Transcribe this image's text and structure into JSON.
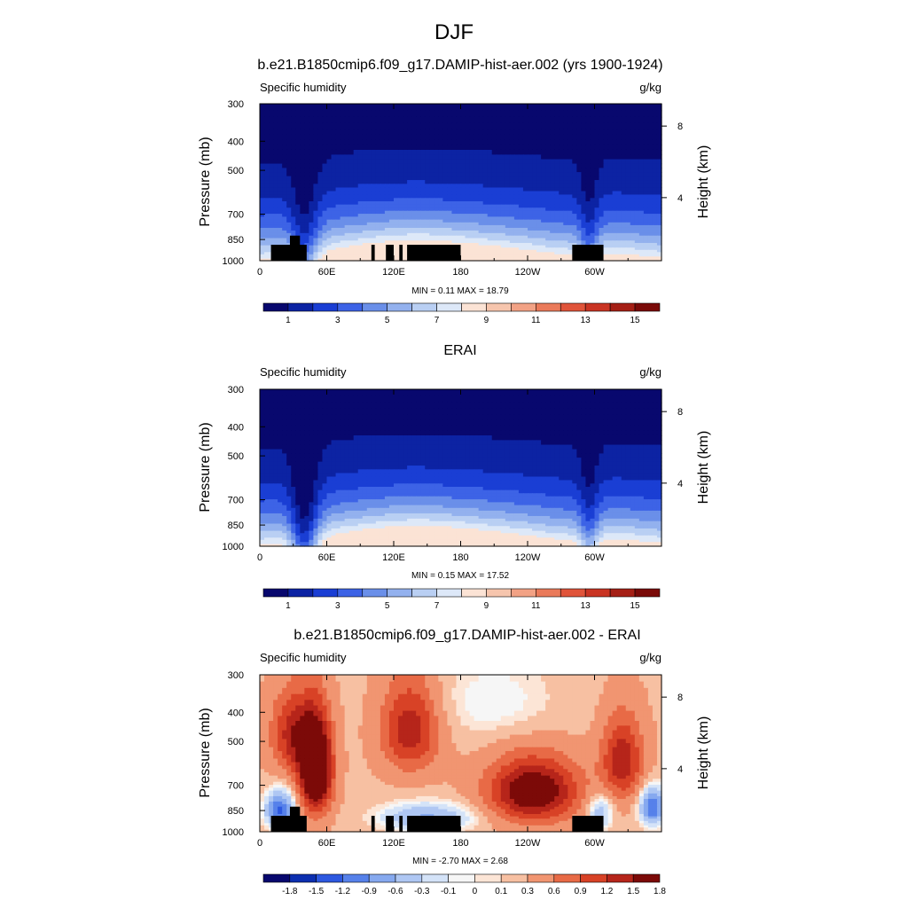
{
  "figure": {
    "title": "DJF"
  },
  "colors": {
    "model_scale": [
      "#08086e",
      "#0c23a3",
      "#1a3ed4",
      "#3d63e6",
      "#6a8fe9",
      "#93b1ee",
      "#b9cff3",
      "#dde8f8",
      "#fbe3d5",
      "#f6c5ad",
      "#f2a285",
      "#ea7a5a",
      "#e0543a",
      "#c93423",
      "#a51f15",
      "#7a0a08"
    ],
    "diff_scale": [
      "#08086e",
      "#0c2fb0",
      "#2d58e0",
      "#5681ea",
      "#86a9ef",
      "#afc7f3",
      "#d4e3f8",
      "#f6f6f6",
      "#fce5d6",
      "#f7c0a2",
      "#f19571",
      "#e86a46",
      "#d84226",
      "#b6251a",
      "#7c0a08"
    ]
  },
  "chart_data": [
    {
      "type": "heatmap",
      "title": "b.e21.B1850cmip6.f09_g17.DAMIP-hist-aer.002 (yrs 1900-1924)",
      "left_label": "Specific humidity",
      "right_label": "g/kg",
      "ylabel": "Pressure (mb)",
      "ylabel_right": "Height (km)",
      "xticks": [
        "0",
        "60E",
        "120E",
        "180",
        "120W",
        "60W"
      ],
      "xtick_lons": [
        0,
        60,
        120,
        180,
        240,
        300
      ],
      "xlim": [
        0,
        360
      ],
      "yticks": [
        "300",
        "400",
        "500",
        "700",
        "850",
        "1000"
      ],
      "ytick_values": [
        300,
        400,
        500,
        700,
        850,
        1000
      ],
      "ylim": [
        300,
        1000
      ],
      "height_ticks": [
        "8",
        "4"
      ],
      "height_values": [
        8,
        4
      ],
      "min_max_text": "MIN =   0.11  MAX =  18.79",
      "min": 0.11,
      "max": 18.79,
      "colorbar_labels": [
        "1",
        "3",
        "5",
        "7",
        "9",
        "11",
        "13",
        "15"
      ],
      "colorbar_levels": [
        1,
        3,
        5,
        7,
        9,
        11,
        13,
        15
      ],
      "kind": "model",
      "topography": true
    },
    {
      "type": "heatmap",
      "title": "ERAI",
      "left_label": "Specific humidity",
      "right_label": "g/kg",
      "ylabel": "Pressure (mb)",
      "ylabel_right": "Height (km)",
      "xticks": [
        "0",
        "60E",
        "120E",
        "180",
        "120W",
        "60W"
      ],
      "xtick_lons": [
        0,
        60,
        120,
        180,
        240,
        300
      ],
      "xlim": [
        0,
        360
      ],
      "yticks": [
        "300",
        "400",
        "500",
        "700",
        "850",
        "1000"
      ],
      "ytick_values": [
        300,
        400,
        500,
        700,
        850,
        1000
      ],
      "ylim": [
        300,
        1000
      ],
      "height_ticks": [
        "8",
        "4"
      ],
      "height_values": [
        8,
        4
      ],
      "min_max_text": "MIN =   0.15  MAX =  17.52",
      "min": 0.15,
      "max": 17.52,
      "colorbar_labels": [
        "1",
        "3",
        "5",
        "7",
        "9",
        "11",
        "13",
        "15"
      ],
      "colorbar_levels": [
        1,
        3,
        5,
        7,
        9,
        11,
        13,
        15
      ],
      "kind": "obs",
      "topography": false
    },
    {
      "type": "heatmap",
      "title": "b.e21.B1850cmip6.f09_g17.DAMIP-hist-aer.002 - ERAI",
      "left_label": "Specific humidity",
      "right_label": "g/kg",
      "ylabel": "Pressure (mb)",
      "ylabel_right": "Height (km)",
      "xticks": [
        "0",
        "60E",
        "120E",
        "180",
        "120W",
        "60W"
      ],
      "xtick_lons": [
        0,
        60,
        120,
        180,
        240,
        300
      ],
      "xlim": [
        0,
        360
      ],
      "yticks": [
        "300",
        "400",
        "500",
        "700",
        "850",
        "1000"
      ],
      "ytick_values": [
        300,
        400,
        500,
        700,
        850,
        1000
      ],
      "ylim": [
        300,
        1000
      ],
      "height_ticks": [
        "8",
        "4"
      ],
      "height_values": [
        8,
        4
      ],
      "min_max_text": "MIN =  -2.70  MAX =   2.68",
      "min": -2.7,
      "max": 2.68,
      "colorbar_labels": [
        "-1.8",
        "-1.5",
        "-1.2",
        "-0.9",
        "-0.6",
        "-0.3",
        "-0.1",
        "0",
        "0.1",
        "0.3",
        "0.6",
        "0.9",
        "1.2",
        "1.5",
        "1.8"
      ],
      "colorbar_levels": [
        -1.8,
        -1.5,
        -1.2,
        -0.9,
        -0.6,
        -0.3,
        -0.1,
        0,
        0.1,
        0.3,
        0.6,
        0.9,
        1.2,
        1.5,
        1.8
      ],
      "kind": "diff",
      "topography": true
    }
  ]
}
